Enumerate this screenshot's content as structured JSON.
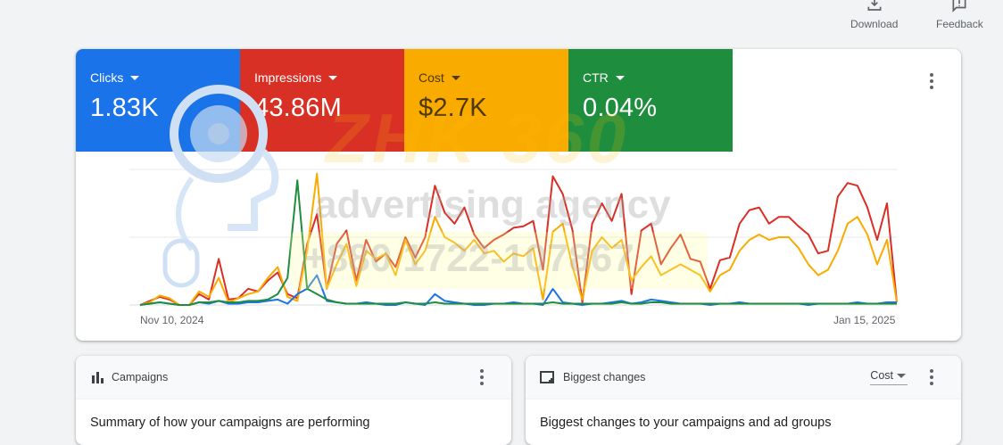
{
  "toolbar": {
    "download_label": "Download",
    "feedback_label": "Feedback"
  },
  "metrics": [
    {
      "label": "Clicks",
      "value": "1.83K",
      "color": "#1a73e8"
    },
    {
      "label": "Impressions",
      "value": "43.86M",
      "color": "#d93025"
    },
    {
      "label": "Cost",
      "value": "$2.7K",
      "color": "#f9ab00"
    },
    {
      "label": "CTR",
      "value": "0.04%",
      "color": "#1e8e3e"
    }
  ],
  "chart_data": {
    "type": "line",
    "x_start_label": "Nov 10, 2024",
    "x_end_label": "Jan 15, 2025",
    "ylim": [
      0,
      100
    ],
    "grid": true,
    "series": [
      {
        "name": "Impressions",
        "color": "#d93025",
        "values": [
          0,
          3,
          6,
          4,
          0,
          0,
          8,
          4,
          34,
          4,
          5,
          12,
          10,
          18,
          24,
          8,
          5,
          45,
          67,
          12,
          45,
          55,
          18,
          48,
          32,
          38,
          28,
          50,
          35,
          50,
          88,
          68,
          60,
          72,
          52,
          42,
          48,
          52,
          57,
          58,
          62,
          26,
          95,
          82,
          55,
          2,
          60,
          75,
          62,
          82,
          8,
          55,
          60,
          30,
          42,
          52,
          34,
          32,
          12,
          33,
          35,
          60,
          70,
          72,
          60,
          65,
          65,
          58,
          52,
          38,
          40,
          80,
          90,
          88,
          72,
          48,
          75,
          2
        ]
      },
      {
        "name": "Cost",
        "color": "#f9ab00",
        "values": [
          0,
          2,
          7,
          5,
          0,
          0,
          10,
          6,
          20,
          2,
          5,
          8,
          10,
          20,
          28,
          6,
          3,
          40,
          97,
          12,
          30,
          45,
          14,
          40,
          34,
          38,
          22,
          48,
          30,
          40,
          65,
          50,
          46,
          40,
          48,
          38,
          40,
          32,
          38,
          36,
          42,
          4,
          54,
          60,
          28,
          4,
          40,
          50,
          42,
          48,
          18,
          28,
          36,
          22,
          26,
          30,
          26,
          22,
          10,
          22,
          26,
          40,
          48,
          52,
          48,
          50,
          50,
          42,
          30,
          22,
          26,
          40,
          60,
          65,
          52,
          30,
          48,
          2
        ]
      },
      {
        "name": "Clicks",
        "color": "#1a73e8",
        "values": [
          0,
          1,
          2,
          1,
          0,
          0,
          2,
          1,
          3,
          1,
          1,
          2,
          2,
          3,
          4,
          1,
          8,
          12,
          22,
          3,
          2,
          1,
          1,
          2,
          1,
          0,
          0,
          2,
          1,
          0,
          8,
          3,
          2,
          1,
          0,
          0,
          1,
          1,
          2,
          1,
          1,
          0,
          12,
          2,
          1,
          0,
          1,
          1,
          2,
          3,
          1,
          2,
          4,
          3,
          2,
          1,
          1,
          1,
          0,
          1,
          1,
          2,
          1,
          1,
          1,
          1,
          1,
          1,
          0,
          1,
          1,
          1,
          1,
          2,
          1,
          1,
          2,
          2
        ]
      },
      {
        "name": "CTR",
        "color": "#1e8e3e",
        "values": [
          0,
          1,
          2,
          1,
          0,
          0,
          2,
          2,
          3,
          2,
          2,
          3,
          3,
          4,
          8,
          20,
          92,
          12,
          8,
          4,
          2,
          1,
          1,
          1,
          1,
          1,
          1,
          2,
          1,
          1,
          2,
          1,
          1,
          1,
          1,
          1,
          1,
          1,
          1,
          1,
          1,
          1,
          2,
          1,
          1,
          1,
          1,
          1,
          1,
          2,
          1,
          1,
          2,
          2,
          1,
          1,
          1,
          1,
          1,
          1,
          1,
          1,
          1,
          1,
          1,
          1,
          1,
          1,
          1,
          1,
          1,
          1,
          1,
          1,
          1,
          1,
          1,
          1
        ]
      }
    ]
  },
  "watermark": {
    "line1": "ZHK 360",
    "line2": "advertising agency",
    "line3": "+880 1722-107867"
  },
  "campaigns": {
    "title": "Campaigns",
    "summary": "Summary of how your campaigns are performing"
  },
  "biggest_changes": {
    "title": "Biggest changes",
    "metric_select": "Cost",
    "summary": "Biggest changes to your campaigns and ad groups"
  }
}
